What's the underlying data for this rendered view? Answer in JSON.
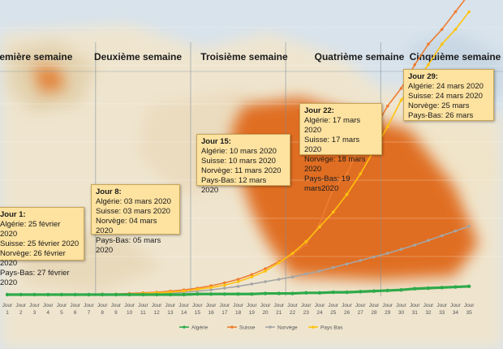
{
  "chart_data": {
    "type": "line",
    "title": "",
    "xlabel": "",
    "ylabel": "",
    "x_prefix": "Jour",
    "x": [
      1,
      2,
      3,
      4,
      5,
      6,
      7,
      8,
      9,
      10,
      11,
      12,
      13,
      14,
      15,
      16,
      17,
      18,
      19,
      20,
      21,
      22,
      23,
      24,
      25,
      26,
      27,
      28,
      29,
      30,
      31,
      32,
      33,
      34,
      35
    ],
    "ylim": [
      0,
      500
    ],
    "series": [
      {
        "name": "Algérie",
        "color": "#2eaa4a",
        "values": [
          0,
          0,
          0,
          0,
          0,
          0,
          0,
          0,
          0,
          0,
          0,
          0,
          0,
          0,
          1,
          1,
          1,
          1,
          1,
          2,
          2,
          2,
          3,
          3,
          4,
          4,
          5,
          6,
          7,
          8,
          10,
          11,
          12,
          13,
          14
        ]
      },
      {
        "name": "Suisse",
        "color": "#ee7d31",
        "values": [
          0,
          0,
          0,
          0,
          0,
          0,
          0,
          1,
          1,
          2,
          3,
          4,
          6,
          8,
          11,
          15,
          20,
          26,
          34,
          44,
          56,
          68,
          85,
          120,
          180,
          205,
          255,
          280,
          320,
          350,
          390,
          425,
          450,
          480,
          510
        ]
      },
      {
        "name": "Norvège",
        "color": "#a5a5a5",
        "values": [
          0,
          0,
          0,
          0,
          0,
          0,
          0,
          0,
          1,
          1,
          1,
          2,
          3,
          4,
          6,
          8,
          11,
          14,
          18,
          22,
          26,
          30,
          35,
          40,
          46,
          52,
          58,
          64,
          70,
          77,
          84,
          92,
          100,
          108,
          116
        ]
      },
      {
        "name": "Pays Bas",
        "color": "#ffc20e",
        "values": [
          0,
          0,
          0,
          0,
          0,
          0,
          0,
          0,
          1,
          1,
          2,
          3,
          4,
          6,
          9,
          12,
          16,
          22,
          30,
          40,
          54,
          70,
          90,
          115,
          140,
          170,
          205,
          245,
          285,
          330,
          360,
          390,
          425,
          450,
          480
        ]
      }
    ],
    "weeks": [
      "Première semaine",
      "Deuxième semaine",
      "Troisième semaine",
      "Quatrième semaine",
      "Cinquième semaine"
    ],
    "annotations": [
      {
        "title": "Jour 1:",
        "lines": [
          "Algérie: 25 février 2020",
          "Suisse: 25 février 2020",
          "Norvège: 26 février 2020",
          "Pays-Bas: 27 février 2020"
        ]
      },
      {
        "title": "Jour 8:",
        "lines": [
          "Algérie: 03 mars 2020",
          "Suisse: 03 mars 2020",
          "Norvège: 04 mars 2020",
          "Pays-Bas: 05 mars 2020"
        ]
      },
      {
        "title": "Jour 15:",
        "lines": [
          "Algérie: 10 mars 2020",
          "Suisse: 10 mars 2020",
          "Norvège: 11 mars 2020",
          "Pays-Bas: 12 mars 2020"
        ]
      },
      {
        "title": "Jour 22:",
        "lines": [
          "Algérie: 17 mars 2020",
          "Suisse: 17 mars 2020",
          "Norvège: 18 mars 2020",
          "Pays-Bas: 19 mars2020"
        ]
      },
      {
        "title": "Jour 29:",
        "lines": [
          "Algérie: 24 mars 2020",
          "Suisse: 24 mars 2020",
          "Norvège: 25 mars",
          "Pays-Bas: 26 mars"
        ]
      }
    ]
  }
}
